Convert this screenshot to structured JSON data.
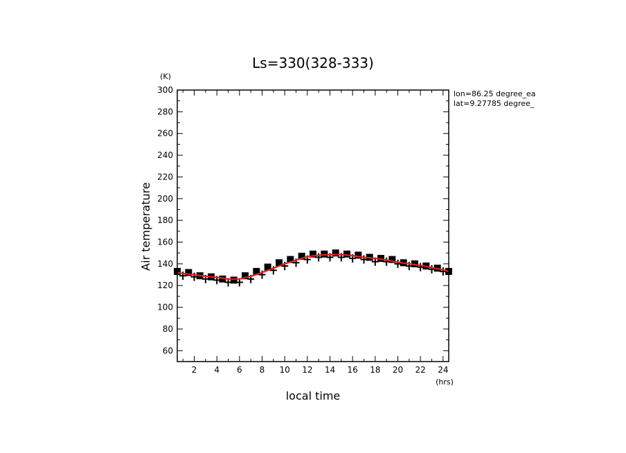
{
  "chart_data": {
    "type": "line",
    "title": "Ls=330(328-333)",
    "xlabel": "local time",
    "ylabel": "Air temperature",
    "x_unit": "(hrs)",
    "y_unit": "(K)",
    "xlim": [
      0.5,
      24.5
    ],
    "ylim": [
      50,
      300
    ],
    "x_ticks": [
      2,
      4,
      6,
      8,
      10,
      12,
      14,
      16,
      18,
      20,
      22,
      24
    ],
    "y_ticks": [
      60,
      80,
      100,
      120,
      140,
      160,
      180,
      200,
      220,
      240,
      260,
      280,
      300
    ],
    "annotations": [
      "lon=86.25 degree_ea",
      "lat=9.27785 degree_"
    ],
    "series": [
      {
        "style": "black square markers",
        "color": "#000000",
        "x": [
          0.5,
          1.5,
          2.5,
          3.5,
          4.5,
          5.5,
          6.5,
          7.5,
          8.5,
          9.5,
          10.5,
          11.5,
          12.5,
          13.5,
          14.5,
          15.5,
          16.5,
          17.5,
          18.5,
          19.5,
          20.5,
          21.5,
          22.5,
          23.5,
          24.5
        ],
        "y": [
          133,
          132,
          129,
          128,
          126,
          125,
          129,
          133,
          137,
          141,
          144,
          147,
          149,
          149,
          150,
          149,
          148,
          146,
          145,
          144,
          141,
          140,
          138,
          136,
          133
        ]
      },
      {
        "style": "black plus markers",
        "color": "#000000",
        "x": [
          1,
          2,
          3,
          4,
          5,
          6,
          7,
          8,
          9,
          10,
          11,
          12,
          13,
          14,
          15,
          16,
          17,
          18,
          19,
          20,
          21,
          22,
          23,
          24
        ],
        "y": [
          129,
          128,
          126,
          125,
          123,
          123,
          126,
          130,
          134,
          138,
          141,
          144,
          146,
          146,
          146,
          145,
          144,
          142,
          142,
          140,
          138,
          137,
          135,
          133
        ]
      },
      {
        "style": "red smooth line",
        "color": "#e0201a",
        "x": [
          0.5,
          1,
          2,
          3,
          4,
          5,
          6,
          7,
          8,
          9,
          10,
          11,
          12,
          13,
          14,
          15,
          16,
          17,
          18,
          19,
          20,
          21,
          22,
          23,
          24,
          24.5
        ],
        "y": [
          132,
          131,
          130,
          128.5,
          127.5,
          126,
          126,
          128.5,
          132,
          136,
          140,
          143.5,
          146.5,
          148,
          148.5,
          148.5,
          147.5,
          146,
          145,
          143.5,
          141.5,
          140,
          138.5,
          136.5,
          134.5,
          133
        ]
      }
    ]
  }
}
